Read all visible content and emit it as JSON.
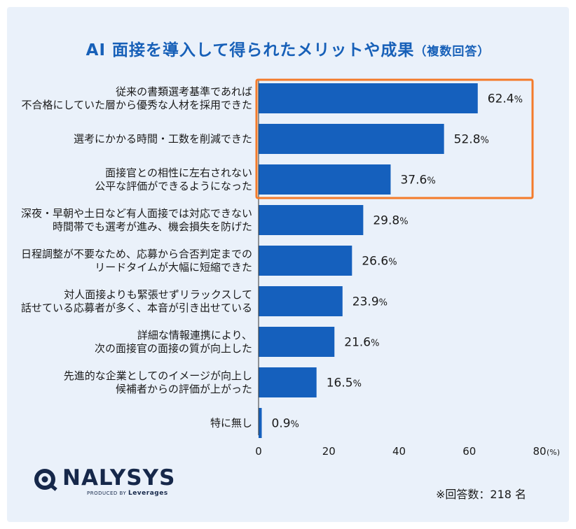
{
  "title": {
    "main": "AI 面接を導入して得られたメリットや成果",
    "sub": "（複数回答）"
  },
  "chart_data": {
    "type": "bar",
    "orientation": "horizontal",
    "categories": [
      [
        "従来の書類選考基準であれば",
        "不合格にしていた層から優秀な人材を採用できた"
      ],
      [
        "選考にかかる時間・工数を削減できた"
      ],
      [
        "面接官との相性に左右されない",
        "公平な評価ができるようになった"
      ],
      [
        "深夜・早朝や土日など有人面接では対応できない",
        "時間帯でも選考が進み、機会損失を防げた"
      ],
      [
        "日程調整が不要なため、応募から合否判定までの",
        "リードタイムが大幅に短縮できた"
      ],
      [
        "対人面接よりも緊張せずリラックスして",
        "話せている応募者が多く、本音が引き出せている"
      ],
      [
        "詳細な情報連携により、",
        "次の面接官の面接の質が向上した"
      ],
      [
        "先進的な企業としてのイメージが向上し",
        "候補者からの評価が上がった"
      ],
      [
        "特に無し"
      ]
    ],
    "values": [
      62.4,
      52.8,
      37.6,
      29.8,
      26.6,
      23.9,
      21.6,
      16.5,
      0.9
    ],
    "value_suffix": "%",
    "xlim": [
      0,
      80
    ],
    "xticks": [
      "0",
      "20",
      "40",
      "60",
      "80"
    ],
    "unit_label": "(%)",
    "highlight_top_n": 3,
    "bar_color": "#1560bd",
    "highlight_color": "#f47b2a"
  },
  "footer": {
    "logo": "NALYSYS",
    "produced_by": "PRODUCED BY",
    "produced_by_brand": "Leverages",
    "respondents": "※回答数：218 名"
  }
}
